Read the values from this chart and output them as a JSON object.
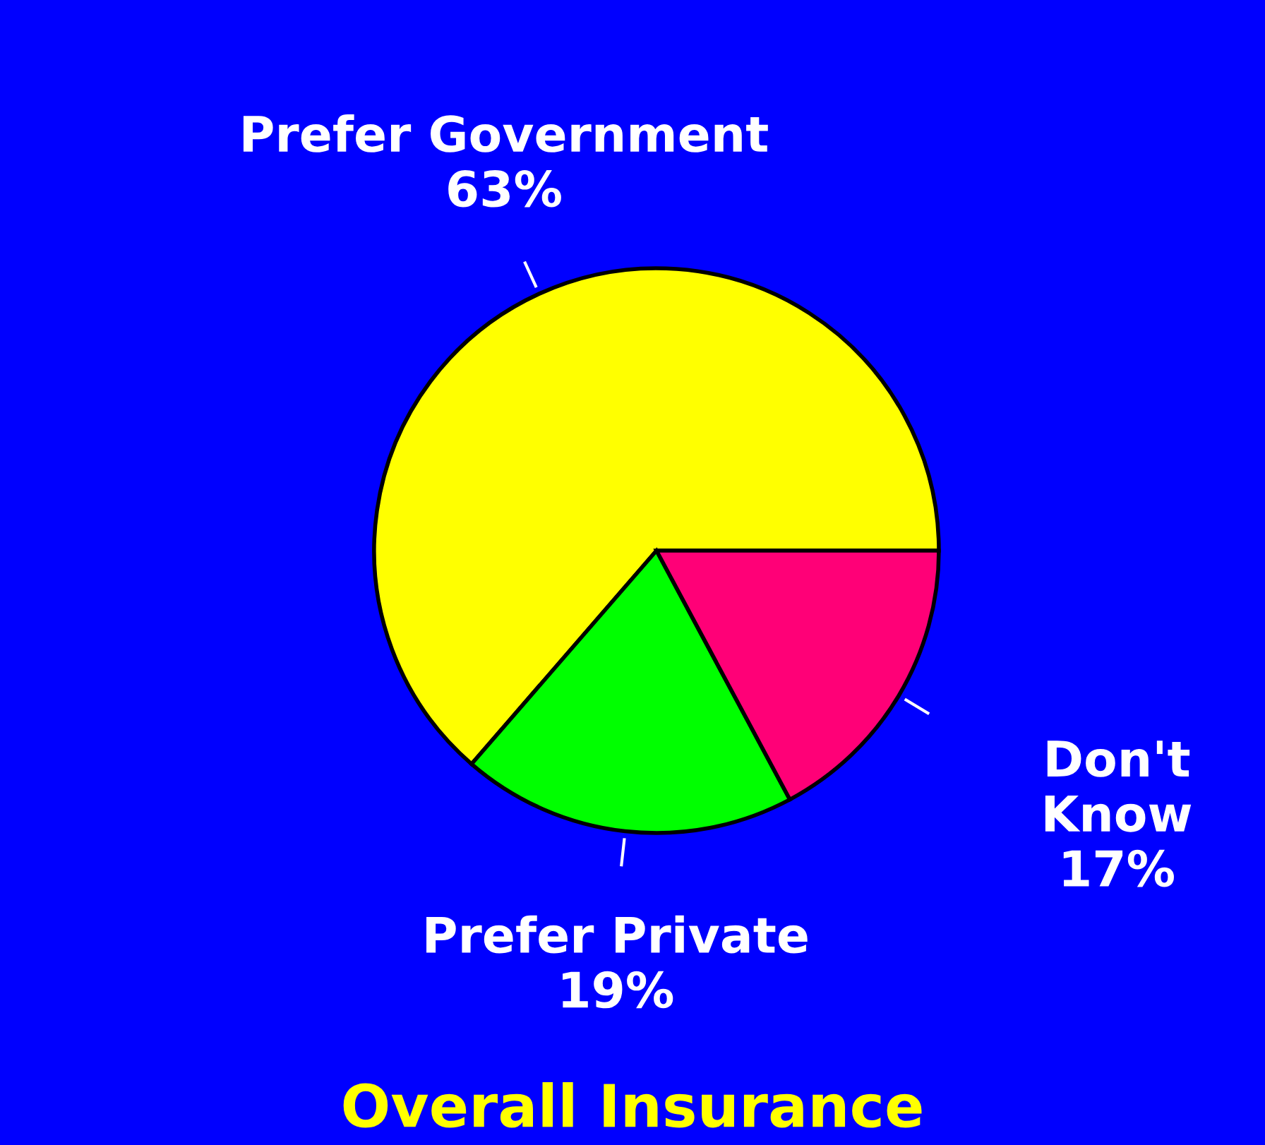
{
  "chart_data": {
    "type": "pie",
    "title": "Overall Insurance",
    "categories": [
      "Prefer Government",
      "Prefer Private",
      "Don't Know"
    ],
    "values": [
      63,
      19,
      17
    ],
    "colors": [
      "#ffff00",
      "#00ff00",
      "#ff0077"
    ],
    "value_labels": [
      "63%",
      "19%",
      "17%"
    ],
    "legend": false
  }
}
